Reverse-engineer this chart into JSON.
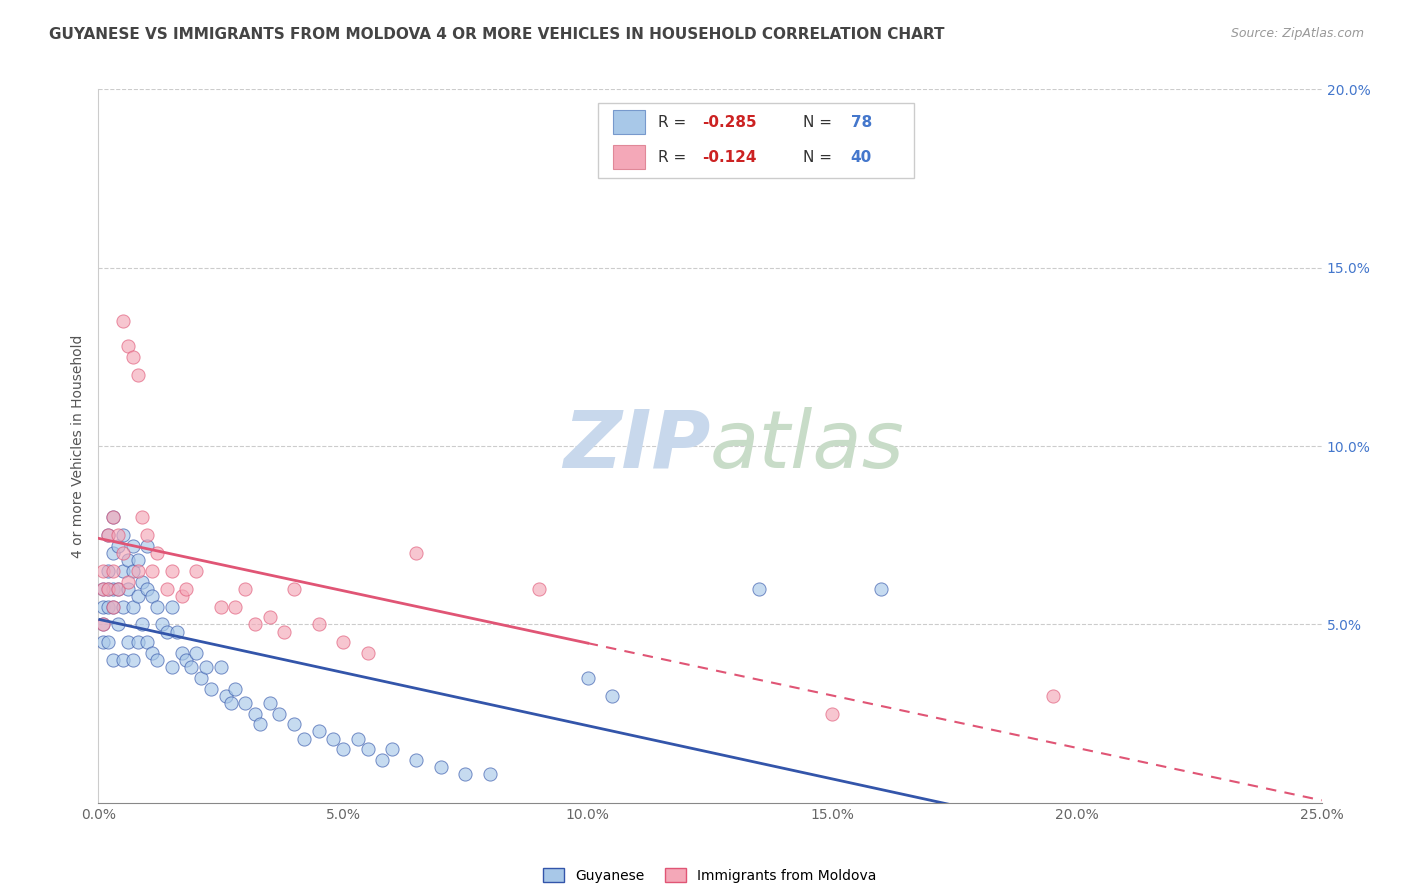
{
  "title": "GUYANESE VS IMMIGRANTS FROM MOLDOVA 4 OR MORE VEHICLES IN HOUSEHOLD CORRELATION CHART",
  "source": "Source: ZipAtlas.com",
  "ylabel": "4 or more Vehicles in Household",
  "xlim": [
    0.0,
    0.25
  ],
  "ylim": [
    0.0,
    0.2
  ],
  "xtick_labels": [
    "0.0%",
    "5.0%",
    "10.0%",
    "15.0%",
    "20.0%",
    "25.0%"
  ],
  "xtick_vals": [
    0.0,
    0.05,
    0.1,
    0.15,
    0.2,
    0.25
  ],
  "ytick_vals": [
    0.05,
    0.1,
    0.15,
    0.2
  ],
  "right_ytick_labels": [
    "5.0%",
    "10.0%",
    "15.0%",
    "20.0%"
  ],
  "color_blue": "#a8c8e8",
  "color_pink": "#f4a8b8",
  "color_blue_line": "#3355aa",
  "color_pink_line": "#e05575",
  "legend_label_guyanese": "Guyanese",
  "legend_label_moldova": "Immigrants from Moldova",
  "guyanese_x": [
    0.001,
    0.001,
    0.001,
    0.001,
    0.002,
    0.002,
    0.002,
    0.002,
    0.002,
    0.003,
    0.003,
    0.003,
    0.003,
    0.003,
    0.004,
    0.004,
    0.004,
    0.005,
    0.005,
    0.005,
    0.005,
    0.006,
    0.006,
    0.006,
    0.007,
    0.007,
    0.007,
    0.007,
    0.008,
    0.008,
    0.008,
    0.009,
    0.009,
    0.01,
    0.01,
    0.01,
    0.011,
    0.011,
    0.012,
    0.012,
    0.013,
    0.014,
    0.015,
    0.015,
    0.016,
    0.017,
    0.018,
    0.019,
    0.02,
    0.021,
    0.022,
    0.023,
    0.025,
    0.026,
    0.027,
    0.028,
    0.03,
    0.032,
    0.033,
    0.035,
    0.037,
    0.04,
    0.042,
    0.045,
    0.048,
    0.05,
    0.053,
    0.055,
    0.058,
    0.06,
    0.065,
    0.07,
    0.075,
    0.08,
    0.1,
    0.105,
    0.135,
    0.16
  ],
  "guyanese_y": [
    0.06,
    0.055,
    0.05,
    0.045,
    0.075,
    0.065,
    0.06,
    0.055,
    0.045,
    0.08,
    0.07,
    0.06,
    0.055,
    0.04,
    0.072,
    0.06,
    0.05,
    0.075,
    0.065,
    0.055,
    0.04,
    0.068,
    0.06,
    0.045,
    0.072,
    0.065,
    0.055,
    0.04,
    0.068,
    0.058,
    0.045,
    0.062,
    0.05,
    0.072,
    0.06,
    0.045,
    0.058,
    0.042,
    0.055,
    0.04,
    0.05,
    0.048,
    0.055,
    0.038,
    0.048,
    0.042,
    0.04,
    0.038,
    0.042,
    0.035,
    0.038,
    0.032,
    0.038,
    0.03,
    0.028,
    0.032,
    0.028,
    0.025,
    0.022,
    0.028,
    0.025,
    0.022,
    0.018,
    0.02,
    0.018,
    0.015,
    0.018,
    0.015,
    0.012,
    0.015,
    0.012,
    0.01,
    0.008,
    0.008,
    0.035,
    0.03,
    0.06,
    0.06
  ],
  "moldova_x": [
    0.001,
    0.001,
    0.001,
    0.002,
    0.002,
    0.003,
    0.003,
    0.003,
    0.004,
    0.004,
    0.005,
    0.005,
    0.006,
    0.006,
    0.007,
    0.008,
    0.008,
    0.009,
    0.01,
    0.011,
    0.012,
    0.014,
    0.015,
    0.017,
    0.018,
    0.02,
    0.025,
    0.028,
    0.03,
    0.032,
    0.035,
    0.038,
    0.04,
    0.045,
    0.05,
    0.055,
    0.065,
    0.09,
    0.15,
    0.195
  ],
  "moldova_y": [
    0.065,
    0.06,
    0.05,
    0.075,
    0.06,
    0.08,
    0.065,
    0.055,
    0.075,
    0.06,
    0.135,
    0.07,
    0.128,
    0.062,
    0.125,
    0.12,
    0.065,
    0.08,
    0.075,
    0.065,
    0.07,
    0.06,
    0.065,
    0.058,
    0.06,
    0.065,
    0.055,
    0.055,
    0.06,
    0.05,
    0.052,
    0.048,
    0.06,
    0.05,
    0.045,
    0.042,
    0.07,
    0.06,
    0.025,
    0.03
  ]
}
